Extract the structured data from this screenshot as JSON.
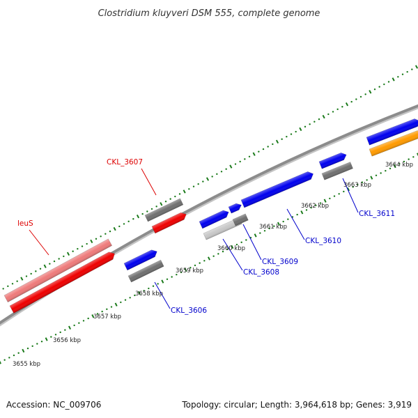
{
  "title": "Clostridium kluyveri DSM 555, complete genome",
  "footer": {
    "accession": "Accession: NC_009706",
    "summary": "Topology: circular; Length: 3,964,618 bp; Genes: 3,919"
  },
  "colors": {
    "backbone": "#8c8c8c",
    "ticks": "#1a7a1a",
    "gene_forward_blue": "#0000ee",
    "gene_red": "#ee0000",
    "gene_red_light": "#ee7a7a",
    "gene_grey": "#6f6f6f",
    "gene_light_grey": "#c8c8c8",
    "gene_orange": "#ff9a00",
    "label_red": "#dd0000",
    "label_blue": "#0000cc"
  },
  "scale_labels": [
    "3655 kbp",
    "3656 kbp",
    "3657 kbp",
    "3658 kbp",
    "3659 kbp",
    "3660 kbp",
    "3661 kbp",
    "3662 kbp",
    "3663 kbp",
    "3664 kbp"
  ],
  "gene_labels": [
    {
      "text": "CKL_3607",
      "color": "red"
    },
    {
      "text": "leuS",
      "color": "red"
    },
    {
      "text": "CKL_3606",
      "color": "blue"
    },
    {
      "text": "CKL_3608",
      "color": "blue"
    },
    {
      "text": "CKL_3609",
      "color": "blue"
    },
    {
      "text": "CKL_3610",
      "color": "blue"
    },
    {
      "text": "CKL_3611",
      "color": "blue"
    }
  ]
}
